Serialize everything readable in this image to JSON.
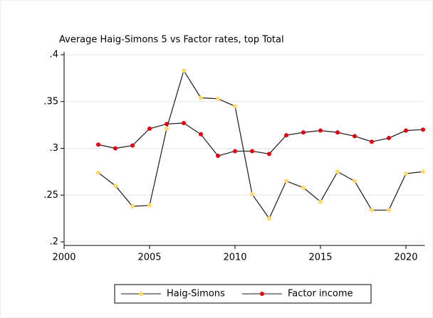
{
  "chart_data": {
    "type": "line",
    "title": "Average Haig-Simons 5 vs Factor  rates, top Total",
    "x": [
      2002,
      2003,
      2004,
      2005,
      2006,
      2007,
      2008,
      2009,
      2010,
      2011,
      2012,
      2013,
      2014,
      2015,
      2016,
      2017,
      2018,
      2019,
      2020,
      2021
    ],
    "series": [
      {
        "name": "Haig-Simons",
        "color": "#ffd966",
        "values": [
          0.274,
          0.26,
          0.238,
          0.239,
          0.321,
          0.383,
          0.354,
          0.353,
          0.345,
          0.251,
          0.225,
          0.265,
          0.258,
          0.243,
          0.275,
          0.265,
          0.234,
          0.234,
          0.273,
          0.275
        ]
      },
      {
        "name": "Factor income",
        "color": "#e8000b",
        "values": [
          0.304,
          0.3,
          0.303,
          0.321,
          0.326,
          0.327,
          0.315,
          0.292,
          0.297,
          0.297,
          0.294,
          0.314,
          0.317,
          0.319,
          0.317,
          0.313,
          0.307,
          0.311,
          0.319,
          0.32
        ]
      }
    ],
    "line_color": "#1a1a1a",
    "xlim": [
      2000,
      2021.1
    ],
    "xticks": [
      2000,
      2005,
      2010,
      2015,
      2020
    ],
    "ylim": [
      0.2,
      0.4
    ],
    "yticks": [
      {
        "value": 0.2,
        "label": ".2"
      },
      {
        "value": 0.25,
        "label": ".25"
      },
      {
        "value": 0.3,
        "label": ".3"
      },
      {
        "value": 0.35,
        "label": ".35"
      },
      {
        "value": 0.4,
        "label": ".4"
      }
    ],
    "grid": true
  }
}
